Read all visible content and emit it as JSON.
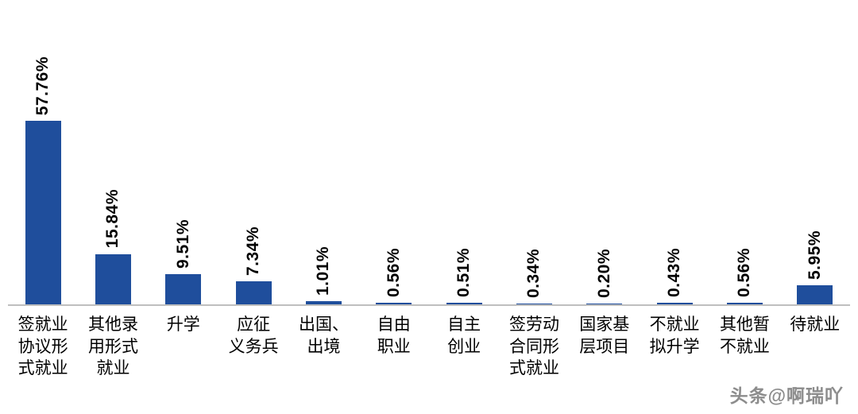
{
  "chart_data": {
    "type": "bar",
    "title": "",
    "xlabel": "",
    "ylabel": "",
    "ylim": [
      0,
      60
    ],
    "grid": false,
    "legend": "none",
    "bar_color": "#1f4e9c",
    "axis_line_color": "#bfbfbf",
    "categories": [
      "签就业协议形式就业",
      "其他录用形式就业",
      "升学",
      "应征义务兵",
      "出国、出境",
      "自由职业",
      "自主创业",
      "签劳动合同形式就业",
      "国家基层项目",
      "不就业拟升学",
      "其他暂不就业",
      "待就业"
    ],
    "category_lines": [
      [
        "签就业",
        "协议形",
        "式就业"
      ],
      [
        "其他录",
        "用形式",
        "就业"
      ],
      [
        "升学"
      ],
      [
        "应征",
        "义务兵"
      ],
      [
        "出国、",
        "出境"
      ],
      [
        "自由",
        "职业"
      ],
      [
        "自主",
        "创业"
      ],
      [
        "签劳动",
        "合同形",
        "式就业"
      ],
      [
        "国家基",
        "层项目"
      ],
      [
        "不就业",
        "拟升学"
      ],
      [
        "其他暂",
        "不就业"
      ],
      [
        "待就业"
      ]
    ],
    "values": [
      57.76,
      15.84,
      9.51,
      7.34,
      1.01,
      0.56,
      0.51,
      0.34,
      0.2,
      0.43,
      0.56,
      5.95
    ],
    "value_labels": [
      "57.76%",
      "15.84%",
      "9.51%",
      "7.34%",
      "1.01%",
      "0.56%",
      "0.51%",
      "0.34%",
      "0.20%",
      "0.43%",
      "0.56%",
      "5.95%"
    ]
  },
  "watermark": "头条@啊瑞吖"
}
